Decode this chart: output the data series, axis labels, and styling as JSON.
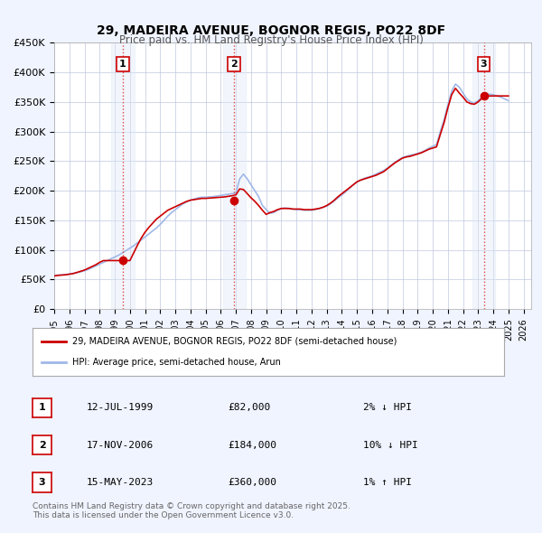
{
  "title": "29, MADEIRA AVENUE, BOGNOR REGIS, PO22 8DF",
  "subtitle": "Price paid vs. HM Land Registry's House Price Index (HPI)",
  "bg_color": "#f0f4ff",
  "plot_bg_color": "#ffffff",
  "grid_color": "#c0c8e0",
  "ylabel": "",
  "ylim": [
    0,
    450000
  ],
  "yticks": [
    0,
    50000,
    100000,
    150000,
    200000,
    250000,
    300000,
    350000,
    400000,
    450000
  ],
  "ytick_labels": [
    "£0",
    "£50K",
    "£100K",
    "£150K",
    "£200K",
    "£250K",
    "£300K",
    "£350K",
    "£400K",
    "£450K"
  ],
  "xlim_start": 1995.0,
  "xlim_end": 2026.5,
  "xticks": [
    1995,
    1996,
    1997,
    1998,
    1999,
    2000,
    2001,
    2002,
    2003,
    2004,
    2005,
    2006,
    2007,
    2008,
    2009,
    2010,
    2011,
    2012,
    2013,
    2014,
    2015,
    2016,
    2017,
    2018,
    2019,
    2020,
    2021,
    2022,
    2023,
    2024,
    2025,
    2026
  ],
  "hpi_color": "#a0b8e8",
  "price_color": "#cc0000",
  "sale_marker_color": "#cc0000",
  "sale_dates": [
    1999.53,
    2006.88,
    2023.37
  ],
  "sale_prices": [
    82000,
    184000,
    360000
  ],
  "sale_labels": [
    "1",
    "2",
    "3"
  ],
  "vline_color": "#dd4444",
  "vline_style": ":",
  "shade_color": "#dce8f8",
  "legend_label_price": "29, MADEIRA AVENUE, BOGNOR REGIS, PO22 8DF (semi-detached house)",
  "legend_label_hpi": "HPI: Average price, semi-detached house, Arun",
  "table_rows": [
    {
      "label": "1",
      "date": "12-JUL-1999",
      "price": "£82,000",
      "hpi": "2% ↓ HPI"
    },
    {
      "label": "2",
      "date": "17-NOV-2006",
      "price": "£184,000",
      "hpi": "10% ↓ HPI"
    },
    {
      "label": "3",
      "date": "15-MAY-2023",
      "price": "£360,000",
      "hpi": "1% ↑ HPI"
    }
  ],
  "footer": "Contains HM Land Registry data © Crown copyright and database right 2025.\nThis data is licensed under the Open Government Licence v3.0.",
  "hpi_data_x": [
    1995.0,
    1995.25,
    1995.5,
    1995.75,
    1996.0,
    1996.25,
    1996.5,
    1996.75,
    1997.0,
    1997.25,
    1997.5,
    1997.75,
    1998.0,
    1998.25,
    1998.5,
    1998.75,
    1999.0,
    1999.25,
    1999.5,
    1999.75,
    2000.0,
    2000.25,
    2000.5,
    2000.75,
    2001.0,
    2001.25,
    2001.5,
    2001.75,
    2002.0,
    2002.25,
    2002.5,
    2002.75,
    2003.0,
    2003.25,
    2003.5,
    2003.75,
    2004.0,
    2004.25,
    2004.5,
    2004.75,
    2005.0,
    2005.25,
    2005.5,
    2005.75,
    2006.0,
    2006.25,
    2006.5,
    2006.75,
    2007.0,
    2007.25,
    2007.5,
    2007.75,
    2008.0,
    2008.25,
    2008.5,
    2008.75,
    2009.0,
    2009.25,
    2009.5,
    2009.75,
    2010.0,
    2010.25,
    2010.5,
    2010.75,
    2011.0,
    2011.25,
    2011.5,
    2011.75,
    2012.0,
    2012.25,
    2012.5,
    2012.75,
    2013.0,
    2013.25,
    2013.5,
    2013.75,
    2014.0,
    2014.25,
    2014.5,
    2014.75,
    2015.0,
    2015.25,
    2015.5,
    2015.75,
    2016.0,
    2016.25,
    2016.5,
    2016.75,
    2017.0,
    2017.25,
    2017.5,
    2017.75,
    2018.0,
    2018.25,
    2018.5,
    2018.75,
    2019.0,
    2019.25,
    2019.5,
    2019.75,
    2020.0,
    2020.25,
    2020.5,
    2020.75,
    2021.0,
    2021.25,
    2021.5,
    2021.75,
    2022.0,
    2022.25,
    2022.5,
    2022.75,
    2023.0,
    2023.25,
    2023.5,
    2023.75,
    2024.0,
    2024.25,
    2024.5,
    2024.75,
    2025.0
  ],
  "hpi_data_y": [
    57000,
    57500,
    58000,
    58500,
    59500,
    60500,
    61500,
    63000,
    65000,
    67000,
    70000,
    73000,
    76000,
    79000,
    82000,
    85000,
    88000,
    91000,
    95000,
    99000,
    103000,
    107000,
    112000,
    117000,
    122000,
    127000,
    132000,
    137000,
    143000,
    150000,
    157000,
    163000,
    168000,
    173000,
    178000,
    181000,
    184000,
    186000,
    188000,
    189000,
    189000,
    189500,
    190000,
    191000,
    192000,
    193000,
    194000,
    195000,
    196000,
    220000,
    228000,
    220000,
    210000,
    200000,
    190000,
    175000,
    168000,
    162000,
    163000,
    167000,
    170000,
    171000,
    170000,
    169000,
    168000,
    168000,
    167000,
    167000,
    167000,
    168000,
    170000,
    172000,
    174000,
    178000,
    183000,
    188000,
    193000,
    198000,
    204000,
    210000,
    215000,
    218000,
    221000,
    223000,
    225000,
    228000,
    231000,
    234000,
    238000,
    243000,
    248000,
    252000,
    256000,
    258000,
    260000,
    261000,
    263000,
    265000,
    268000,
    272000,
    275000,
    278000,
    300000,
    320000,
    345000,
    368000,
    380000,
    375000,
    365000,
    355000,
    350000,
    348000,
    352000,
    358000,
    362000,
    363000,
    362000,
    360000,
    358000,
    355000,
    352000
  ],
  "price_data_x": [
    1995.0,
    1995.25,
    1995.5,
    1995.75,
    1996.0,
    1996.25,
    1996.5,
    1996.75,
    1997.0,
    1997.25,
    1997.5,
    1997.75,
    1998.0,
    1998.25,
    1998.5,
    1998.75,
    1999.0,
    1999.25,
    1999.5,
    1999.75,
    2000.0,
    2000.25,
    2000.5,
    2000.75,
    2001.0,
    2001.25,
    2001.5,
    2001.75,
    2002.0,
    2002.25,
    2002.5,
    2002.75,
    2003.0,
    2003.25,
    2003.5,
    2003.75,
    2004.0,
    2004.25,
    2004.5,
    2004.75,
    2005.0,
    2005.25,
    2005.5,
    2005.75,
    2006.0,
    2006.25,
    2006.5,
    2006.75,
    2007.0,
    2007.25,
    2007.5,
    2007.75,
    2008.0,
    2008.25,
    2008.5,
    2008.75,
    2009.0,
    2009.25,
    2009.5,
    2009.75,
    2010.0,
    2010.25,
    2010.5,
    2010.75,
    2011.0,
    2011.25,
    2011.5,
    2011.75,
    2012.0,
    2012.25,
    2012.5,
    2012.75,
    2013.0,
    2013.25,
    2013.5,
    2013.75,
    2014.0,
    2014.25,
    2014.5,
    2014.75,
    2015.0,
    2015.25,
    2015.5,
    2015.75,
    2016.0,
    2016.25,
    2016.5,
    2016.75,
    2017.0,
    2017.25,
    2017.5,
    2017.75,
    2018.0,
    2018.25,
    2018.5,
    2018.75,
    2019.0,
    2019.25,
    2019.5,
    2019.75,
    2020.0,
    2020.25,
    2020.5,
    2020.75,
    2021.0,
    2021.25,
    2021.5,
    2021.75,
    2022.0,
    2022.25,
    2022.5,
    2022.75,
    2023.0,
    2023.25,
    2023.5,
    2023.75,
    2024.0,
    2024.25,
    2024.5,
    2024.75,
    2025.0
  ],
  "price_data_y": [
    56000,
    57000,
    57500,
    58000,
    59000,
    60000,
    62000,
    64000,
    66000,
    69000,
    72000,
    75000,
    79000,
    82000,
    82000,
    82000,
    82000,
    82000,
    82000,
    82000,
    82000,
    95000,
    108000,
    120000,
    130000,
    138000,
    145000,
    152000,
    157000,
    162000,
    167000,
    170000,
    173000,
    176000,
    179000,
    182000,
    184000,
    185000,
    186000,
    187000,
    187000,
    187500,
    188000,
    188500,
    189000,
    189500,
    190500,
    191500,
    193000,
    203000,
    202000,
    195000,
    188000,
    182000,
    175000,
    167000,
    160000,
    163000,
    165000,
    168000,
    170000,
    170000,
    170000,
    169000,
    169000,
    169000,
    168000,
    168000,
    168000,
    169000,
    170000,
    172000,
    175000,
    179000,
    184000,
    190000,
    195000,
    200000,
    205000,
    210000,
    215000,
    218000,
    220000,
    222000,
    224000,
    226000,
    229000,
    232000,
    237000,
    242000,
    247000,
    251000,
    255000,
    257000,
    258000,
    260000,
    262000,
    264000,
    267000,
    270000,
    272000,
    274000,
    295000,
    315000,
    340000,
    362000,
    373000,
    365000,
    358000,
    350000,
    347000,
    346000,
    350000,
    356000,
    360000,
    360000,
    360000,
    360000,
    360000,
    360000,
    360000
  ]
}
